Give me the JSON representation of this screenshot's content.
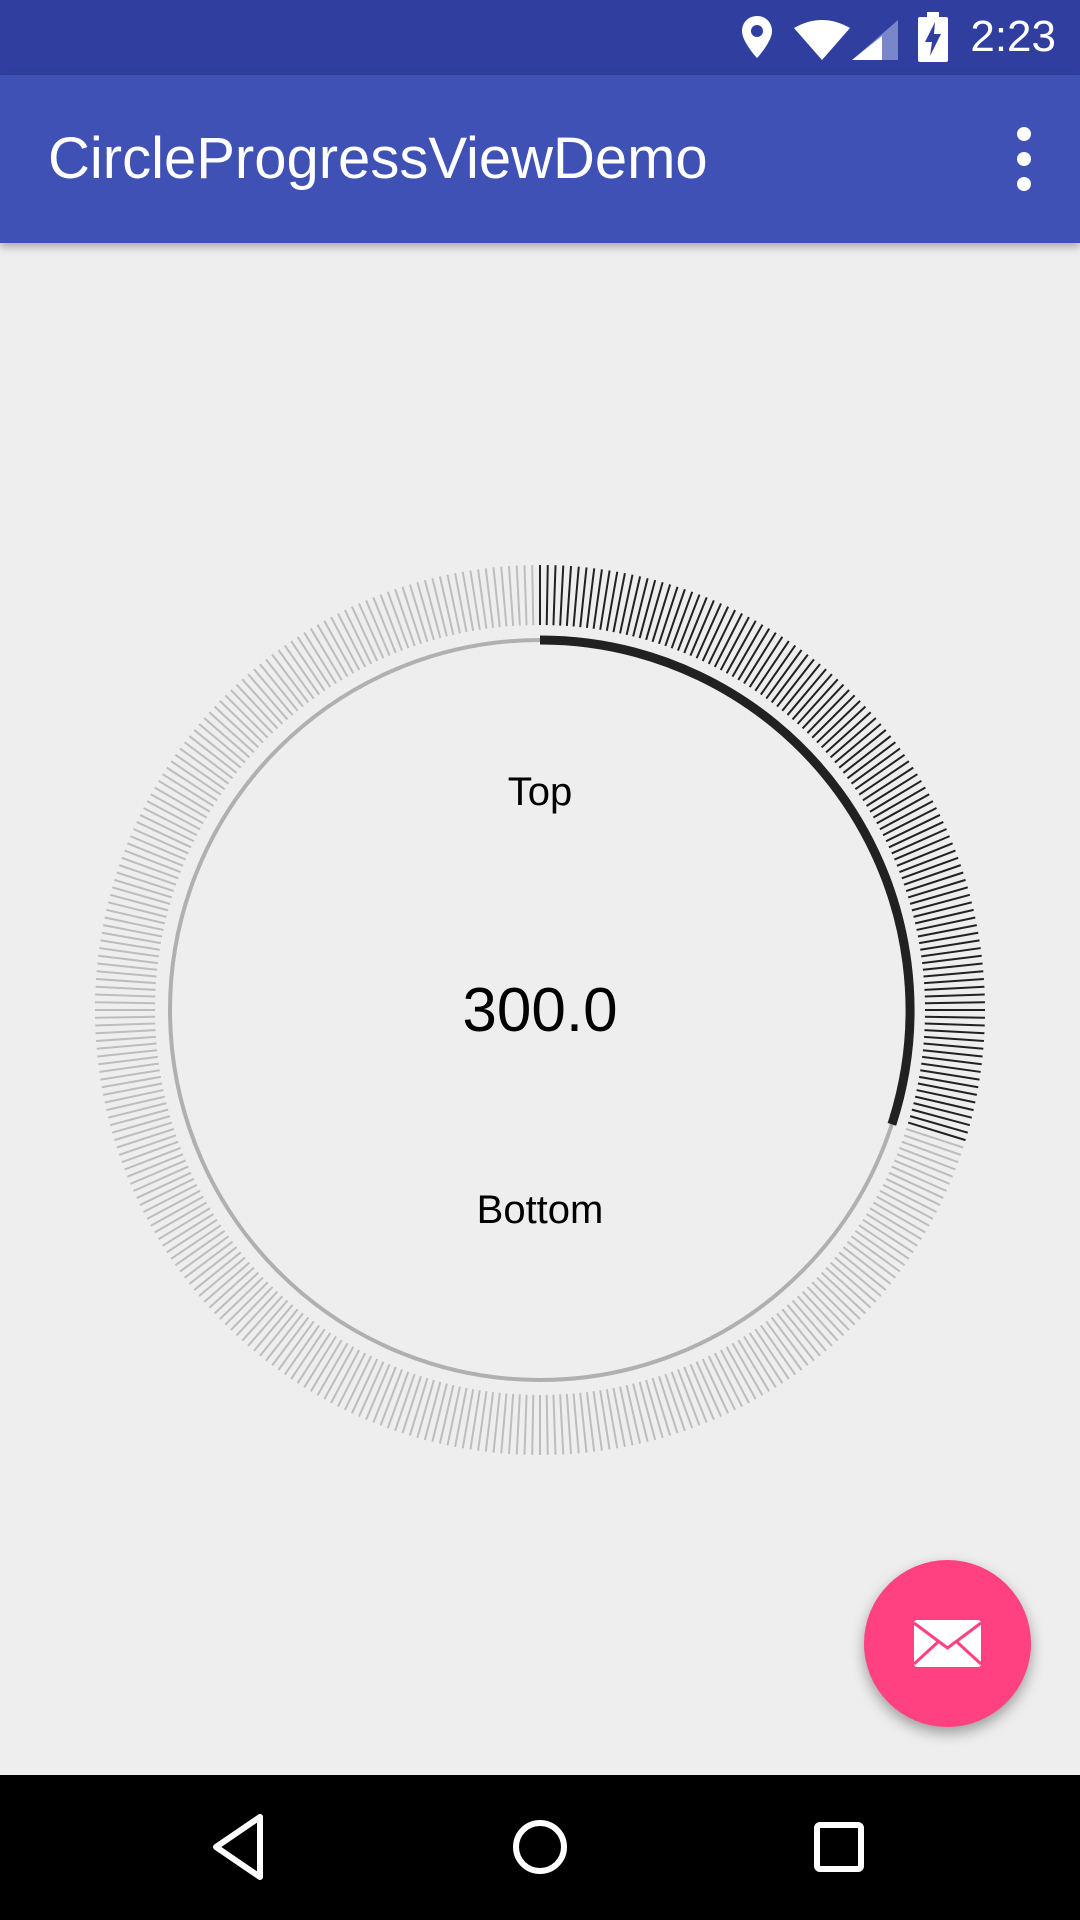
{
  "status_bar": {
    "time": "2:23",
    "icons": [
      "location-icon",
      "wifi-icon",
      "cellular-signal-icon",
      "battery-charging-icon"
    ]
  },
  "app_bar": {
    "title": "CircleProgressViewDemo",
    "overflow_icon": "more-vert-icon"
  },
  "progress_view": {
    "top_text": "Top",
    "value_text": "300.0",
    "bottom_text": "Bottom",
    "progress_fraction": 0.3,
    "tick_count": 360,
    "colors": {
      "progress": "#212121",
      "track": "#B0B0B0",
      "tick_active": "#212121",
      "tick_inactive": "#BDBDBD"
    }
  },
  "fab": {
    "icon": "email-icon",
    "color": "#FF4081"
  },
  "nav_bar": {
    "buttons": [
      "back-icon",
      "home-icon",
      "recents-icon"
    ]
  },
  "colors": {
    "status_bar": "#303F9F",
    "app_bar": "#3F51B5",
    "background": "#EEEEEE"
  }
}
